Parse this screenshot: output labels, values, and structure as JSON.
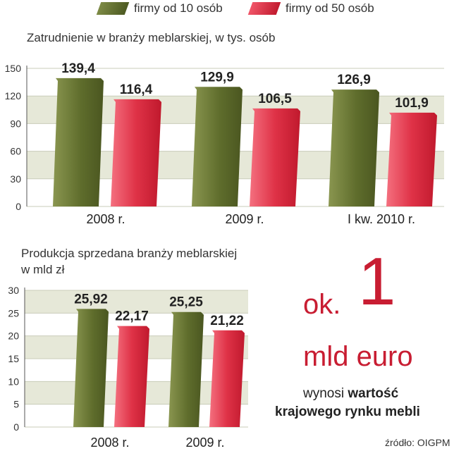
{
  "legend": [
    {
      "label": "firmy od 10 osób",
      "color": "#5c6b2c"
    },
    {
      "label": "firmy od 50 osób",
      "color": "#d42135"
    }
  ],
  "chart_data": [
    {
      "type": "bar",
      "title": "Zatrudnienie w branży meblarskiej, w tys. osób",
      "categories": [
        "2008 r.",
        "2009 r.",
        "I kw. 2010 r."
      ],
      "series": [
        {
          "name": "firmy od 10 osób",
          "values": [
            139.4,
            129.9,
            126.9
          ],
          "labels": [
            "139,4",
            "129,9",
            "126,9"
          ]
        },
        {
          "name": "firmy od 50 osób",
          "values": [
            116.4,
            106.5,
            101.9
          ],
          "labels": [
            "116,4",
            "106,5",
            "101,9"
          ]
        }
      ],
      "yticks": [
        "0",
        "30",
        "60",
        "90",
        "120",
        "150"
      ],
      "ylim": [
        0,
        150
      ],
      "grid": "alternating bands"
    },
    {
      "type": "bar",
      "title": "Produkcja sprzedana branży meblarskiej",
      "subtitle": "w mld zł",
      "categories": [
        "2008 r.",
        "2009 r."
      ],
      "series": [
        {
          "name": "firmy od 10 osób",
          "values": [
            25.92,
            25.25
          ],
          "labels": [
            "25,92",
            "25,25"
          ]
        },
        {
          "name": "firmy od 50 osób",
          "values": [
            22.17,
            21.22
          ],
          "labels": [
            "22,17",
            "21,22"
          ]
        }
      ],
      "yticks": [
        "0",
        "5",
        "10",
        "15",
        "20",
        "25",
        "30"
      ],
      "ylim": [
        0,
        30
      ],
      "grid": "alternating bands"
    }
  ],
  "callout": {
    "ok": "ok.",
    "number": "1",
    "unit": "mld euro",
    "line1_plain": "wynosi ",
    "line1_bold": "wartość",
    "line2_bold": "krajowego rynku mebli"
  },
  "source": "źródło: OIGPM",
  "colors": {
    "olive": "#5c6b2c",
    "red": "#d42135",
    "band": "#e6e8d8"
  }
}
